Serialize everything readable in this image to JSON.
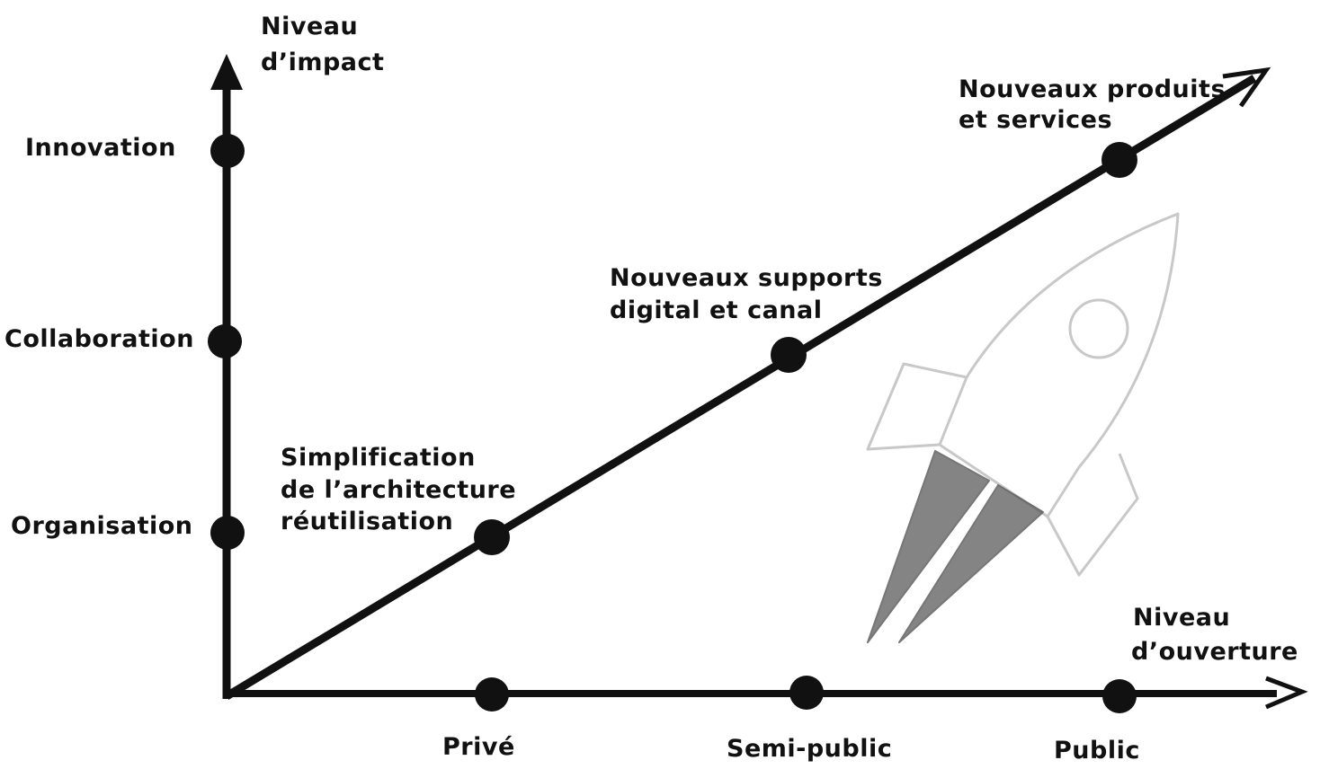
{
  "y_axis": {
    "title_line1": "Niveau",
    "title_line2": "d’impact",
    "levels": [
      "Organisation",
      "Collaboration",
      "Innovation"
    ]
  },
  "x_axis": {
    "title_line1": "Niveau",
    "title_line2": "d’ouverture",
    "levels": [
      "Privé",
      "Semi-public",
      "Public"
    ]
  },
  "diagonal": {
    "points": [
      {
        "line1": "Simplification",
        "line2": "de l’architecture",
        "line3": "réutilisation"
      },
      {
        "line1": "Nouveaux supports",
        "line2": "digital et canal"
      },
      {
        "line1": "Nouveaux produits",
        "line2": "et services"
      }
    ]
  },
  "colors": {
    "ink": "#111111",
    "rocket_outline": "#c8c8c8",
    "rocket_flame": "#555555"
  },
  "icons": {
    "illustration": "rocket-icon"
  }
}
